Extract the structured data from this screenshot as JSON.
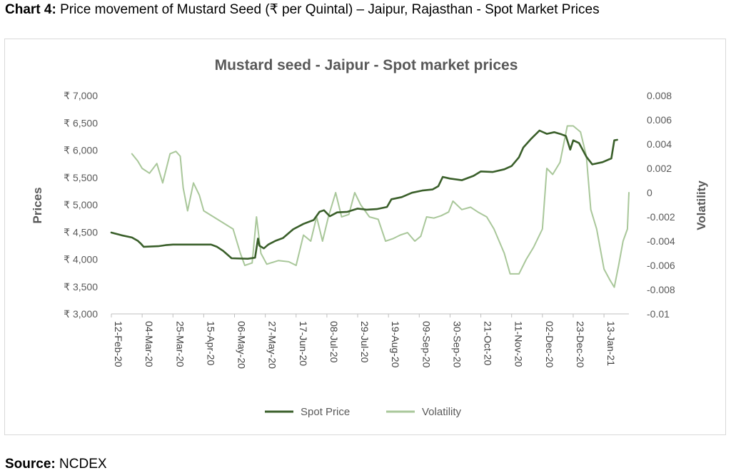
{
  "caption": {
    "label": "Chart 4:",
    "text": "Price movement of Mustard Seed (₹ per Quintal) – Jaipur, Rajasthan - Spot Market Prices"
  },
  "source": {
    "label": "Source:",
    "text": "NCDEX"
  },
  "chart_data": {
    "type": "line",
    "title": "Mustard seed - Jaipur - Spot market prices",
    "ylabel": "Prices",
    "y2label": "Volatility",
    "ylim": [
      3000,
      7000
    ],
    "y2lim": [
      -0.01,
      0.008
    ],
    "yticks": [
      "₹ 3,000",
      "₹ 3,500",
      "₹ 4,000",
      "₹ 4,500",
      "₹ 5,000",
      "₹ 5,500",
      "₹ 6,000",
      "₹ 6,500",
      "₹ 7,000"
    ],
    "y2ticks": [
      "-0.01",
      "-0.008",
      "-0.006",
      "-0.004",
      "-0.002",
      "0",
      "0.002",
      "0.004",
      "0.006",
      "0.008"
    ],
    "xticks": [
      "12-Feb-20",
      "04-Mar-20",
      "25-Mar-20",
      "15-Apr-20",
      "06-May-20",
      "27-May-20",
      "17-Jun-20",
      "08-Jul-20",
      "29-Jul-20",
      "19-Aug-20",
      "09-Sep-20",
      "30-Sep-20",
      "21-Oct-20",
      "11-Nov-20",
      "02-Dec-20",
      "23-Dec-20",
      "13-Jan-21"
    ],
    "xlim": [
      "12-Feb-20",
      "30-Jan-21"
    ],
    "grid": false,
    "legend": "bottom",
    "colors": {
      "spot": "#3a5f2a",
      "volatility": "#a9c79a"
    },
    "series": [
      {
        "name": "Spot Price",
        "axis": "left",
        "points": [
          [
            "12-Feb-20",
            4490
          ],
          [
            "19-Feb-20",
            4440
          ],
          [
            "26-Feb-20",
            4400
          ],
          [
            "01-Mar-20",
            4340
          ],
          [
            "03-Mar-20",
            4290
          ],
          [
            "05-Mar-20",
            4230
          ],
          [
            "15-Mar-20",
            4240
          ],
          [
            "20-Mar-20",
            4260
          ],
          [
            "25-Mar-20",
            4270
          ],
          [
            "20-Apr-20",
            4270
          ],
          [
            "24-Apr-20",
            4230
          ],
          [
            "28-Apr-20",
            4160
          ],
          [
            "01-May-20",
            4090
          ],
          [
            "04-May-20",
            4020
          ],
          [
            "15-May-20",
            4010
          ],
          [
            "20-May-20",
            4030
          ],
          [
            "22-May-20",
            4380
          ],
          [
            "23-May-20",
            4250
          ],
          [
            "26-May-20",
            4200
          ],
          [
            "29-May-20",
            4270
          ],
          [
            "03-Jun-20",
            4340
          ],
          [
            "08-Jun-20",
            4390
          ],
          [
            "15-Jun-20",
            4550
          ],
          [
            "22-Jun-20",
            4650
          ],
          [
            "29-Jun-20",
            4720
          ],
          [
            "03-Jul-20",
            4870
          ],
          [
            "06-Jul-20",
            4900
          ],
          [
            "10-Jul-20",
            4790
          ],
          [
            "15-Jul-20",
            4860
          ],
          [
            "22-Jul-20",
            4870
          ],
          [
            "29-Jul-20",
            4930
          ],
          [
            "04-Aug-20",
            4910
          ],
          [
            "11-Aug-20",
            4920
          ],
          [
            "18-Aug-20",
            4960
          ],
          [
            "21-Aug-20",
            5100
          ],
          [
            "28-Aug-20",
            5140
          ],
          [
            "04-Sep-20",
            5220
          ],
          [
            "11-Sep-20",
            5260
          ],
          [
            "18-Sep-20",
            5280
          ],
          [
            "22-Sep-20",
            5340
          ],
          [
            "25-Sep-20",
            5510
          ],
          [
            "30-Sep-20",
            5480
          ],
          [
            "08-Oct-20",
            5450
          ],
          [
            "16-Oct-20",
            5530
          ],
          [
            "21-Oct-20",
            5610
          ],
          [
            "29-Oct-20",
            5600
          ],
          [
            "06-Nov-20",
            5650
          ],
          [
            "11-Nov-20",
            5710
          ],
          [
            "16-Nov-20",
            5870
          ],
          [
            "19-Nov-20",
            6050
          ],
          [
            "24-Nov-20",
            6200
          ],
          [
            "30-Nov-20",
            6360
          ],
          [
            "05-Dec-20",
            6300
          ],
          [
            "10-Dec-20",
            6330
          ],
          [
            "15-Dec-20",
            6290
          ],
          [
            "18-Dec-20",
            6260
          ],
          [
            "21-Dec-20",
            6010
          ],
          [
            "23-Dec-20",
            6180
          ],
          [
            "27-Dec-20",
            6130
          ],
          [
            "01-Jan-21",
            5880
          ],
          [
            "05-Jan-21",
            5740
          ],
          [
            "12-Jan-21",
            5780
          ],
          [
            "18-Jan-21",
            5850
          ],
          [
            "20-Jan-21",
            6180
          ],
          [
            "22-Jan-21",
            6190
          ]
        ]
      },
      {
        "name": "Volatility",
        "axis": "right",
        "points": [
          [
            "26-Feb-20",
            0.0032
          ],
          [
            "01-Mar-20",
            0.0026
          ],
          [
            "04-Mar-20",
            0.002
          ],
          [
            "09-Mar-20",
            0.0016
          ],
          [
            "14-Mar-20",
            0.0024
          ],
          [
            "18-Mar-20",
            0.0008
          ],
          [
            "23-Mar-20",
            0.0032
          ],
          [
            "27-Mar-20",
            0.0034
          ],
          [
            "30-Mar-20",
            0.003
          ],
          [
            "01-Apr-20",
            0.0004
          ],
          [
            "04-Apr-20",
            -0.0015
          ],
          [
            "08-Apr-20",
            0.0008
          ],
          [
            "12-Apr-20",
            -0.0002
          ],
          [
            "15-Apr-20",
            -0.0015
          ],
          [
            "05-May-20",
            -0.003
          ],
          [
            "10-May-20",
            -0.005
          ],
          [
            "13-May-20",
            -0.006
          ],
          [
            "18-May-20",
            -0.0058
          ],
          [
            "21-May-20",
            -0.002
          ],
          [
            "24-May-20",
            -0.005
          ],
          [
            "28-May-20",
            -0.0059
          ],
          [
            "05-Jun-20",
            -0.0056
          ],
          [
            "12-Jun-20",
            -0.0057
          ],
          [
            "17-Jun-20",
            -0.006
          ],
          [
            "22-Jun-20",
            -0.0035
          ],
          [
            "27-Jun-20",
            -0.004
          ],
          [
            "01-Jul-20",
            -0.002
          ],
          [
            "05-Jul-20",
            -0.004
          ],
          [
            "09-Jul-20",
            -0.002
          ],
          [
            "14-Jul-20",
            0.0
          ],
          [
            "18-Jul-20",
            -0.002
          ],
          [
            "23-Jul-20",
            -0.0018
          ],
          [
            "27-Jul-20",
            0.0
          ],
          [
            "31-Jul-20",
            -0.001
          ],
          [
            "06-Aug-20",
            -0.002
          ],
          [
            "12-Aug-20",
            -0.0022
          ],
          [
            "17-Aug-20",
            -0.004
          ],
          [
            "22-Aug-20",
            -0.0038
          ],
          [
            "27-Aug-20",
            -0.0035
          ],
          [
            "01-Sep-20",
            -0.0033
          ],
          [
            "06-Sep-20",
            -0.004
          ],
          [
            "10-Sep-20",
            -0.0036
          ],
          [
            "14-Sep-20",
            -0.002
          ],
          [
            "19-Sep-20",
            -0.0021
          ],
          [
            "24-Sep-20",
            -0.0019
          ],
          [
            "29-Sep-20",
            -0.0016
          ],
          [
            "02-Oct-20",
            -0.0007
          ],
          [
            "08-Oct-20",
            -0.0014
          ],
          [
            "14-Oct-20",
            -0.0012
          ],
          [
            "19-Oct-20",
            -0.0016
          ],
          [
            "25-Oct-20",
            -0.002
          ],
          [
            "30-Oct-20",
            -0.003
          ],
          [
            "06-Nov-20",
            -0.005
          ],
          [
            "10-Nov-20",
            -0.0067
          ],
          [
            "16-Nov-20",
            -0.0067
          ],
          [
            "21-Nov-20",
            -0.0055
          ],
          [
            "26-Nov-20",
            -0.0045
          ],
          [
            "02-Dec-20",
            -0.003
          ],
          [
            "05-Dec-20",
            0.002
          ],
          [
            "09-Dec-20",
            0.0015
          ],
          [
            "14-Dec-20",
            0.0025
          ],
          [
            "19-Dec-20",
            0.0055
          ],
          [
            "23-Dec-20",
            0.0055
          ],
          [
            "28-Dec-20",
            0.005
          ],
          [
            "01-Jan-21",
            0.003
          ],
          [
            "04-Jan-21",
            -0.0014
          ],
          [
            "08-Jan-21",
            -0.003
          ],
          [
            "13-Jan-21",
            -0.0063
          ],
          [
            "17-Jan-21",
            -0.0072
          ],
          [
            "20-Jan-21",
            -0.0078
          ],
          [
            "23-Jan-21",
            -0.006
          ],
          [
            "26-Jan-21",
            -0.004
          ],
          [
            "29-Jan-21",
            -0.003
          ],
          [
            "30-Jan-21",
            0.0
          ]
        ]
      }
    ]
  }
}
